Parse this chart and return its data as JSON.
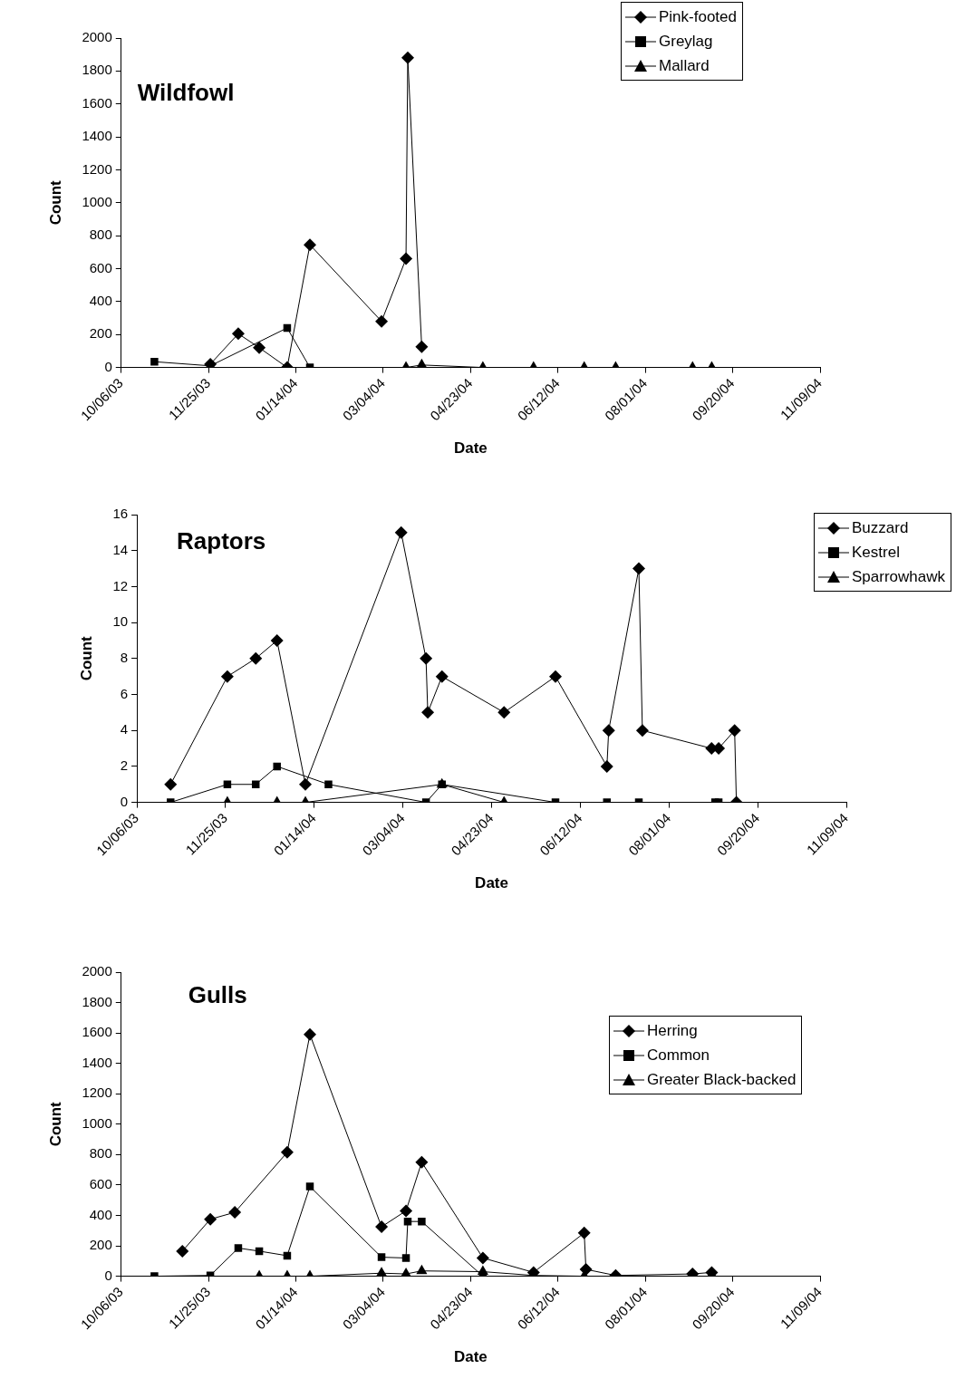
{
  "chart_data": [
    {
      "type": "line",
      "title": "Wildfowl",
      "xlabel": "Date",
      "ylabel": "Count",
      "legend": "top right",
      "grid": false,
      "xlim": [
        "2003-10-06",
        "2004-11-09"
      ],
      "xticks": [
        {
          "value": "2003-10-06",
          "label": "10/06/03"
        },
        {
          "value": "2003-11-25",
          "label": "11/25/03"
        },
        {
          "value": "2004-01-14",
          "label": "01/14/04"
        },
        {
          "value": "2004-03-04",
          "label": "03/04/04"
        },
        {
          "value": "2004-04-23",
          "label": "04/23/04"
        },
        {
          "value": "2004-06-12",
          "label": "06/12/04"
        },
        {
          "value": "2004-08-01",
          "label": "08/01/04"
        },
        {
          "value": "2004-09-20",
          "label": "09/20/04"
        },
        {
          "value": "2004-11-09",
          "label": "11/09/04"
        }
      ],
      "ylim": [
        0,
        2000
      ],
      "yticks": [
        0,
        200,
        400,
        600,
        800,
        1000,
        1200,
        1400,
        1600,
        1800,
        2000
      ],
      "series": [
        {
          "name": "Pink-footed",
          "color": "#000000",
          "marker": "diamond",
          "x": [
            "2003-11-26",
            "2003-12-12",
            "2003-12-24",
            "2004-01-09",
            "2004-01-22",
            "2004-03-03",
            "2004-03-17",
            "2004-03-18",
            "2004-03-26"
          ],
          "values": [
            20,
            205,
            120,
            0,
            745,
            280,
            660,
            1880,
            125
          ]
        },
        {
          "name": "Greylag",
          "color": "#000000",
          "marker": "square",
          "x": [
            "2003-10-25",
            "2003-11-26",
            "2004-01-09",
            "2004-01-22"
          ],
          "values": [
            35,
            10,
            240,
            0
          ]
        },
        {
          "name": "Mallard",
          "color": "#000000",
          "marker": "triangle",
          "x": [
            "2004-03-17",
            "2004-03-26",
            "2004-04-30",
            "2004-05-29",
            "2004-06-27",
            "2004-07-15",
            "2004-08-28",
            "2004-09-08"
          ],
          "values": [
            0,
            15,
            0,
            0,
            0,
            0,
            0,
            0
          ]
        }
      ]
    },
    {
      "type": "line",
      "title": "Raptors",
      "xlabel": "Date",
      "ylabel": "Count",
      "legend": "right",
      "grid": false,
      "xlim": [
        "2003-10-06",
        "2004-11-09"
      ],
      "xticks": [
        {
          "value": "2003-10-06",
          "label": "10/06/03"
        },
        {
          "value": "2003-11-25",
          "label": "11/25/03"
        },
        {
          "value": "2004-01-14",
          "label": "01/14/04"
        },
        {
          "value": "2004-03-04",
          "label": "03/04/04"
        },
        {
          "value": "2004-04-23",
          "label": "04/23/04"
        },
        {
          "value": "2004-06-12",
          "label": "06/12/04"
        },
        {
          "value": "2004-08-01",
          "label": "08/01/04"
        },
        {
          "value": "2004-09-20",
          "label": "09/20/04"
        },
        {
          "value": "2004-11-09",
          "label": "11/09/04"
        }
      ],
      "ylim": [
        0,
        16
      ],
      "yticks": [
        0,
        2,
        4,
        6,
        8,
        10,
        12,
        14,
        16
      ],
      "series": [
        {
          "name": "Buzzard",
          "color": "#000000",
          "marker": "diamond",
          "x": [
            "2003-10-25",
            "2003-11-26",
            "2003-12-12",
            "2003-12-24",
            "2004-01-09",
            "2004-03-03",
            "2004-03-17",
            "2004-03-18",
            "2004-03-26",
            "2004-04-30",
            "2004-05-29",
            "2004-06-27",
            "2004-06-28",
            "2004-07-15",
            "2004-07-17",
            "2004-08-25",
            "2004-08-29",
            "2004-09-07",
            "2004-09-08"
          ],
          "values": [
            1,
            7,
            8,
            9,
            1,
            15,
            8,
            5,
            7,
            5,
            7,
            2,
            4,
            13,
            4,
            3,
            3,
            4,
            0
          ]
        },
        {
          "name": "Kestrel",
          "color": "#000000",
          "marker": "square",
          "x": [
            "2003-10-25",
            "2003-11-26",
            "2003-12-12",
            "2003-12-24",
            "2004-01-22",
            "2004-03-17",
            "2004-03-26",
            "2004-05-29",
            "2004-06-27",
            "2004-07-15",
            "2004-08-27",
            "2004-08-29"
          ],
          "values": [
            0,
            1,
            1,
            2,
            1,
            0,
            1,
            0,
            0,
            0,
            0,
            0
          ]
        },
        {
          "name": "Sparrowhawk",
          "color": "#000000",
          "marker": "triangle",
          "x": [
            "2003-11-26",
            "2003-12-24",
            "2004-01-09",
            "2004-03-26",
            "2004-04-30",
            "2004-09-08"
          ],
          "values": [
            0,
            0,
            0,
            1,
            0,
            0
          ]
        }
      ]
    },
    {
      "type": "line",
      "title": "Gulls",
      "xlabel": "Date",
      "ylabel": "Count",
      "legend": "top right",
      "grid": false,
      "xlim": [
        "2003-10-06",
        "2004-11-09"
      ],
      "xticks": [
        {
          "value": "2003-10-06",
          "label": "10/06/03"
        },
        {
          "value": "2003-11-25",
          "label": "11/25/03"
        },
        {
          "value": "2004-01-14",
          "label": "01/14/04"
        },
        {
          "value": "2004-03-04",
          "label": "03/04/04"
        },
        {
          "value": "2004-04-23",
          "label": "04/23/04"
        },
        {
          "value": "2004-06-12",
          "label": "06/12/04"
        },
        {
          "value": "2004-08-01",
          "label": "08/01/04"
        },
        {
          "value": "2004-09-20",
          "label": "09/20/04"
        },
        {
          "value": "2004-11-09",
          "label": "11/09/04"
        }
      ],
      "ylim": [
        0,
        2000
      ],
      "yticks": [
        0,
        200,
        400,
        600,
        800,
        1000,
        1200,
        1400,
        1600,
        1800,
        2000
      ],
      "series": [
        {
          "name": "Herring",
          "color": "#000000",
          "marker": "diamond",
          "x": [
            "2003-11-10",
            "2003-11-26",
            "2003-12-10",
            "2004-01-09",
            "2004-01-22",
            "2004-03-03",
            "2004-03-17",
            "2004-03-26",
            "2004-04-30",
            "2004-05-29",
            "2004-06-27",
            "2004-06-28",
            "2004-07-15",
            "2004-08-28",
            "2004-09-08"
          ],
          "values": [
            165,
            375,
            420,
            815,
            1590,
            325,
            430,
            750,
            120,
            25,
            285,
            45,
            5,
            15,
            25
          ]
        },
        {
          "name": "Common",
          "color": "#000000",
          "marker": "square",
          "x": [
            "2003-10-25",
            "2003-11-26",
            "2003-12-12",
            "2003-12-24",
            "2004-01-09",
            "2004-01-22",
            "2004-03-03",
            "2004-03-17",
            "2004-03-18",
            "2004-03-26",
            "2004-04-30",
            "2004-09-08"
          ],
          "values": [
            0,
            5,
            185,
            165,
            135,
            590,
            125,
            120,
            360,
            360,
            0,
            0
          ]
        },
        {
          "name": "Greater Black-backed",
          "color": "#000000",
          "marker": "triangle",
          "x": [
            "2003-12-24",
            "2004-01-09",
            "2004-01-22",
            "2004-03-03",
            "2004-03-17",
            "2004-03-26",
            "2004-04-30",
            "2004-05-29",
            "2004-06-27",
            "2004-07-15",
            "2004-08-28",
            "2004-09-08"
          ],
          "values": [
            0,
            0,
            0,
            20,
            15,
            35,
            30,
            5,
            0,
            0,
            0,
            0
          ]
        }
      ]
    }
  ]
}
